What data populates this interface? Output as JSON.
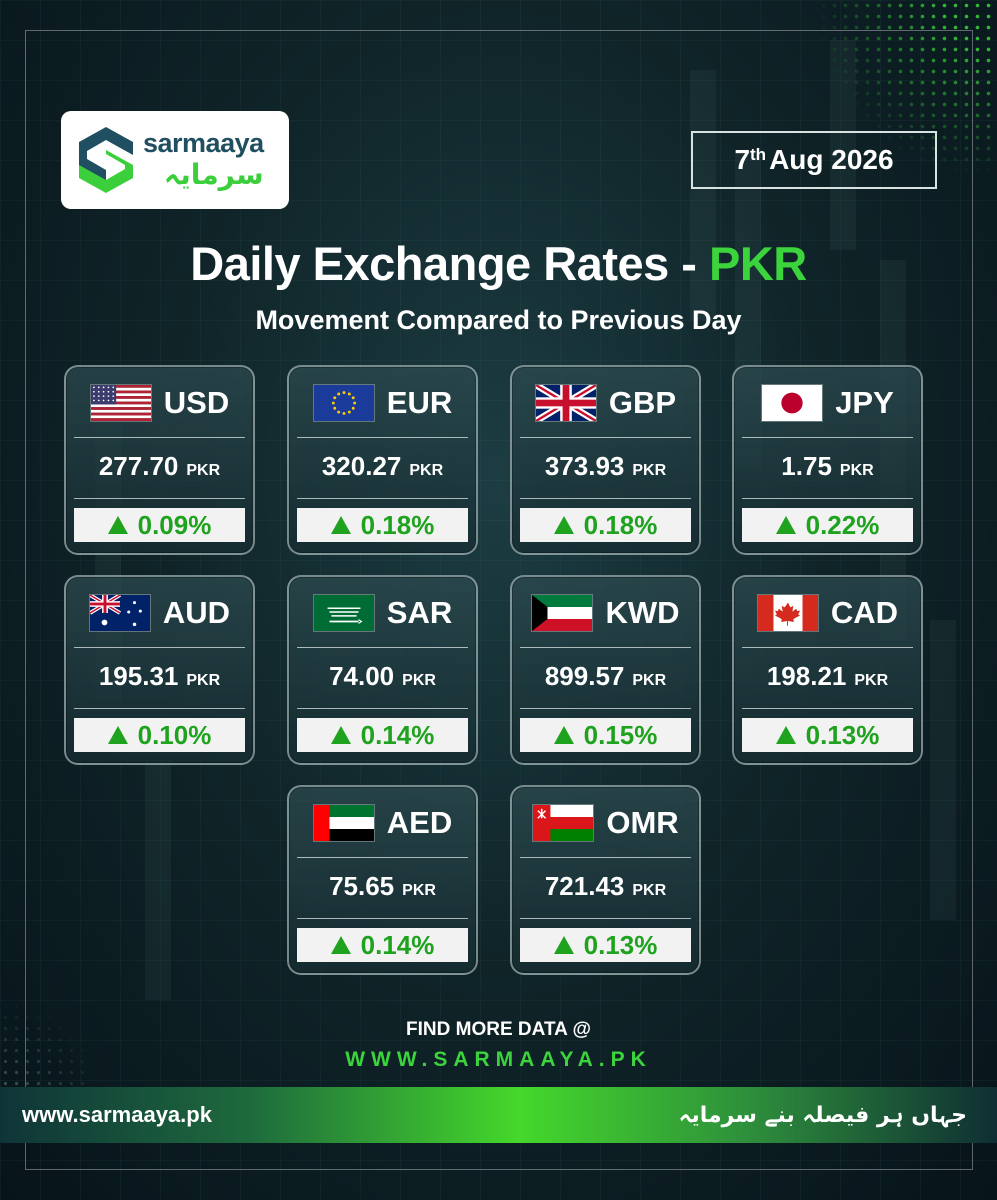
{
  "brand": {
    "name_en": "sarmaaya",
    "name_ur": "سرمایہ"
  },
  "date": {
    "day": "7",
    "suffix": "th",
    "rest": "Aug 2026"
  },
  "title": {
    "main": "Daily Exchange Rates - ",
    "accent": "PKR"
  },
  "subtitle": "Movement Compared to Previous Day",
  "unit": "PKR",
  "cards": [
    {
      "code": "USD",
      "flag": "us-flag-icon",
      "rate": "277.70",
      "change": "0.09%",
      "direction": "up"
    },
    {
      "code": "EUR",
      "flag": "eu-flag-icon",
      "rate": "320.27",
      "change": "0.18%",
      "direction": "up"
    },
    {
      "code": "GBP",
      "flag": "uk-flag-icon",
      "rate": "373.93",
      "change": "0.18%",
      "direction": "up"
    },
    {
      "code": "JPY",
      "flag": "jp-flag-icon",
      "rate": "1.75",
      "change": "0.22%",
      "direction": "up"
    },
    {
      "code": "AUD",
      "flag": "au-flag-icon",
      "rate": "195.31",
      "change": "0.10%",
      "direction": "up"
    },
    {
      "code": "SAR",
      "flag": "sa-flag-icon",
      "rate": "74.00",
      "change": "0.14%",
      "direction": "up"
    },
    {
      "code": "KWD",
      "flag": "kw-flag-icon",
      "rate": "899.57",
      "change": "0.15%",
      "direction": "up"
    },
    {
      "code": "CAD",
      "flag": "ca-flag-icon",
      "rate": "198.21",
      "change": "0.13%",
      "direction": "up"
    },
    {
      "code": "AED",
      "flag": "ae-flag-icon",
      "rate": "75.65",
      "change": "0.14%",
      "direction": "up"
    },
    {
      "code": "OMR",
      "flag": "om-flag-icon",
      "rate": "721.43",
      "change": "0.13%",
      "direction": "up"
    }
  ],
  "footer": {
    "find_more": "FIND MORE DATA @",
    "site_caps": "WWW.SARMAAYA.PK",
    "url": "www.sarmaaya.pk",
    "tagline_ur": "جہاں ہر فیصلہ بنے سرمایہ"
  },
  "colors": {
    "accent": "#3cd43c",
    "up": "#1fa31f",
    "background": "#0b1a1f"
  }
}
